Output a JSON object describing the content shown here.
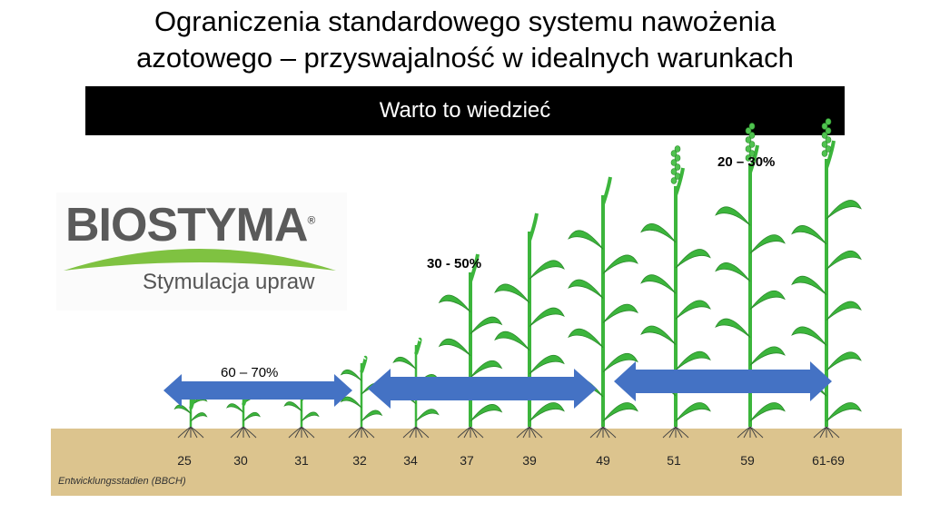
{
  "slide": {
    "title_line1": "Ograniczenia standardowego systemu nawożenia",
    "title_line2": "azotowego – przyswajalność w idealnych warunkach",
    "banner": "Warto to wiedzieć"
  },
  "logo": {
    "brand": "BIOSTYMA",
    "registered": "®",
    "tagline": "Stymulacja upraw"
  },
  "diagram": {
    "percentages": [
      {
        "label": "60 – 70%",
        "bold": false
      },
      {
        "label": "30 - 50%",
        "bold": true
      },
      {
        "label": "20 – 30%",
        "bold": true
      }
    ],
    "stages": [
      "25",
      "30",
      "31",
      "32",
      "34",
      "37",
      "39",
      "49",
      "51",
      "59",
      "61-69"
    ],
    "axis_note": "Entwicklungsstadien (BBCH)"
  },
  "colors": {
    "arrow": "#4472c4",
    "soil": "#dcc48e",
    "plant": "#3cb53c",
    "banner": "#000000"
  }
}
